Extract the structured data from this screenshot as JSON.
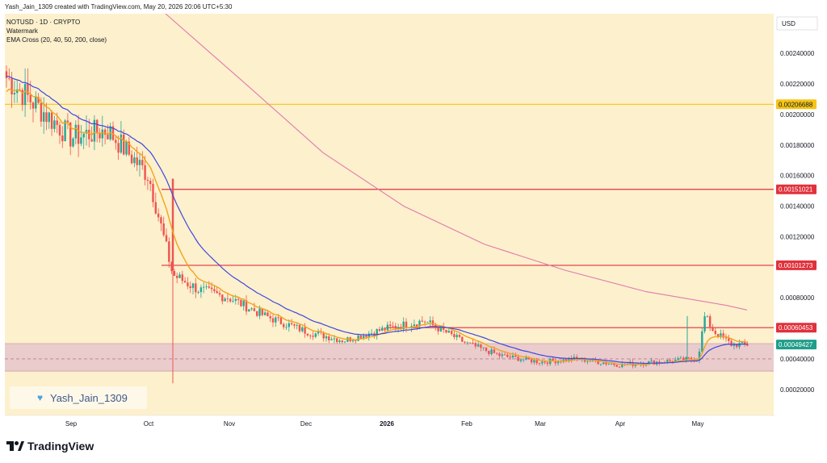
{
  "header": {
    "created_line": "Yash_Jain_1309 created with TradingView.com, May 20, 2026 20:06 UTC+5:30"
  },
  "legend": {
    "symbol_line": "NOTUSD · 1D · CRYPTO",
    "watermark_line": "Watermark",
    "indicator_line": "EMA Cross (20, 40, 50, 200, close)"
  },
  "watermark_text": "Yash_Jain_1309",
  "brand": "TradingView",
  "colors": {
    "background": "#fdf0cc",
    "candle_up": "#26a69a",
    "candle_down": "#ef5350",
    "ema_fast": "#f0a41d",
    "ema_mid": "#3d47e0",
    "ema_slow": "#e07ab0",
    "horizontal_line_yellow": "#f5c518",
    "horizontal_line_red": "#e0323c",
    "zone_fill": "#e8c6cc",
    "price_label_yellow_bg": "#f5c518",
    "price_label_red_bg": "#e0323c",
    "price_label_green_bg": "#1f9e8a"
  },
  "chart_data": {
    "type": "candlestick",
    "symbol": "NOTUSD",
    "interval": "1D",
    "currency": "USD",
    "x_axis_labels": [
      "Sep",
      "Oct",
      "Nov",
      "Dec",
      "2026",
      "Feb",
      "Mar",
      "Apr",
      "May"
    ],
    "y_axis_ticks": [
      0.0002,
      0.0004,
      0.0006,
      0.0008,
      0.001,
      0.0012,
      0.0014,
      0.0016,
      0.0018,
      0.002,
      0.0022,
      0.0024
    ],
    "y_tick_labels": [
      "0.00020000",
      "0.00040000",
      "0.00060000",
      "0.00080000",
      "0.00100000",
      "0.00120000",
      "0.00140000",
      "0.00160000",
      "0.00180000",
      "0.00200000",
      "0.00220000",
      "0.00240000"
    ],
    "ylim": [
      3e-05,
      0.00266
    ],
    "price_levels": [
      {
        "value": 0.00206688,
        "label": "0.00206688",
        "color": "#f5c518",
        "start": "full"
      },
      {
        "value": 0.00151021,
        "label": "0.00151021",
        "color": "#e0323c",
        "start": "Oct"
      },
      {
        "value": 0.00101273,
        "label": "0.00101273",
        "color": "#e0323c",
        "start": "Oct"
      },
      {
        "value": 0.00060453,
        "label": "0.00060453",
        "color": "#e0323c",
        "start": "Jan"
      }
    ],
    "last_price": {
      "value": 0.00049427,
      "label": "0.00049427"
    },
    "support_zone": {
      "from": 0.00032,
      "to": 0.0005
    },
    "dashed_level": 0.0004,
    "close_path": [
      [
        "Aug",
        0.00225
      ],
      [
        "Sep",
        0.00185
      ],
      [
        "Sep 15",
        0.0019
      ],
      [
        "Oct",
        0.0016
      ],
      [
        "Oct 10",
        0.00095
      ],
      [
        "Oct 20",
        0.00085
      ],
      [
        "Nov",
        0.0008
      ],
      [
        "Nov 15",
        0.00068
      ],
      [
        "Dec",
        0.00058
      ],
      [
        "Dec 15",
        0.00052
      ],
      [
        "2026",
        0.0006
      ],
      [
        "Jan 15",
        0.00065
      ],
      [
        "Feb",
        0.0005
      ],
      [
        "Feb 15",
        0.00042
      ],
      [
        "Mar",
        0.00038
      ],
      [
        "Mar 15",
        0.0004
      ],
      [
        "Apr",
        0.00036
      ],
      [
        "Apr 15",
        0.00038
      ],
      [
        "May",
        0.0004
      ],
      [
        "May 5",
        0.00068
      ],
      [
        "May 10",
        0.00058
      ],
      [
        "May 20",
        0.00049427
      ]
    ],
    "ema_lines": [
      {
        "name": "EMA 20",
        "color": "#f0a41d"
      },
      {
        "name": "EMA 50",
        "color": "#3d47e0"
      },
      {
        "name": "EMA 200",
        "color": "#e07ab0"
      }
    ]
  }
}
